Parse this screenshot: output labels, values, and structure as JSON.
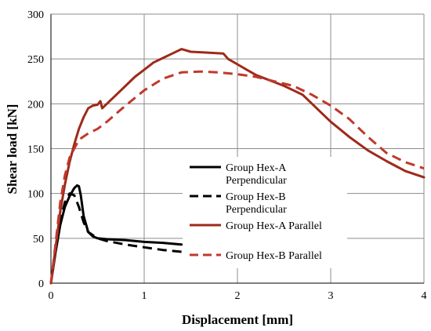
{
  "chart_data": {
    "type": "line",
    "xlabel": "Displacement [mm]",
    "ylabel": "Shear load [kN]",
    "xlim": [
      0,
      4
    ],
    "ylim": [
      0,
      300
    ],
    "x_ticks": [
      "0",
      "1",
      "2",
      "3",
      "4"
    ],
    "y_ticks": [
      "0",
      "50",
      "100",
      "150",
      "200",
      "250",
      "300"
    ],
    "grid": true,
    "legend_position": "center-right",
    "series": [
      {
        "name": "Group Hex-A Perpendicular",
        "legend_lines": [
          "Group Hex-A",
          "Perpendicular"
        ],
        "color": "#000000",
        "style": "solid",
        "x": [
          0,
          0.05,
          0.1,
          0.15,
          0.2,
          0.25,
          0.28,
          0.3,
          0.32,
          0.35,
          0.4,
          0.45,
          0.5,
          0.6,
          0.8,
          1.0,
          1.2,
          1.4
        ],
        "y": [
          0,
          35,
          65,
          85,
          97,
          106,
          109,
          108,
          98,
          75,
          57,
          52,
          50,
          49,
          48,
          46,
          45,
          43
        ]
      },
      {
        "name": "Group Hex-B Perpendicular",
        "legend_lines": [
          "Group Hex-B",
          "Perpendicular"
        ],
        "color": "#000000",
        "style": "dashed",
        "x": [
          0,
          0.05,
          0.1,
          0.15,
          0.2,
          0.25,
          0.3,
          0.35,
          0.4,
          0.5,
          0.6,
          0.8,
          1.0,
          1.2,
          1.4
        ],
        "y": [
          0,
          40,
          70,
          90,
          100,
          98,
          85,
          68,
          57,
          50,
          47,
          43,
          40,
          37,
          35
        ]
      },
      {
        "name": "Group Hex-A Parallel",
        "legend_lines": [
          "Group Hex-A Parallel"
        ],
        "color": "#9e2a1a",
        "style": "solid",
        "x": [
          0,
          0.05,
          0.1,
          0.15,
          0.2,
          0.25,
          0.3,
          0.35,
          0.4,
          0.45,
          0.5,
          0.53,
          0.55,
          0.6,
          0.7,
          0.8,
          0.9,
          1.0,
          1.1,
          1.2,
          1.3,
          1.4,
          1.5,
          1.7,
          1.85,
          1.9,
          2.0,
          2.1,
          2.2,
          2.3,
          2.4,
          2.5,
          2.6,
          2.7,
          2.8,
          2.9,
          3.0,
          3.2,
          3.4,
          3.6,
          3.8,
          4.0
        ],
        "y": [
          0,
          40,
          80,
          110,
          135,
          155,
          172,
          185,
          195,
          198,
          199,
          203,
          195,
          200,
          210,
          220,
          230,
          238,
          246,
          251,
          256,
          261,
          258,
          257,
          256,
          250,
          244,
          238,
          232,
          228,
          224,
          220,
          215,
          210,
          200,
          190,
          180,
          163,
          148,
          136,
          125,
          118
        ]
      },
      {
        "name": "Group Hex-B Parallel",
        "legend_lines": [
          "Group Hex-B Parallel"
        ],
        "color": "#c0392b",
        "style": "dashed",
        "x": [
          0,
          0.05,
          0.1,
          0.15,
          0.2,
          0.3,
          0.4,
          0.5,
          0.6,
          0.8,
          1.0,
          1.2,
          1.4,
          1.6,
          1.8,
          2.0,
          2.2,
          2.4,
          2.6,
          2.8,
          3.0,
          3.2,
          3.4,
          3.6,
          3.8,
          4.0
        ],
        "y": [
          0,
          45,
          90,
          120,
          140,
          160,
          167,
          172,
          180,
          198,
          215,
          228,
          235,
          236,
          235,
          233,
          230,
          225,
          220,
          210,
          198,
          183,
          163,
          145,
          135,
          128
        ]
      }
    ]
  }
}
